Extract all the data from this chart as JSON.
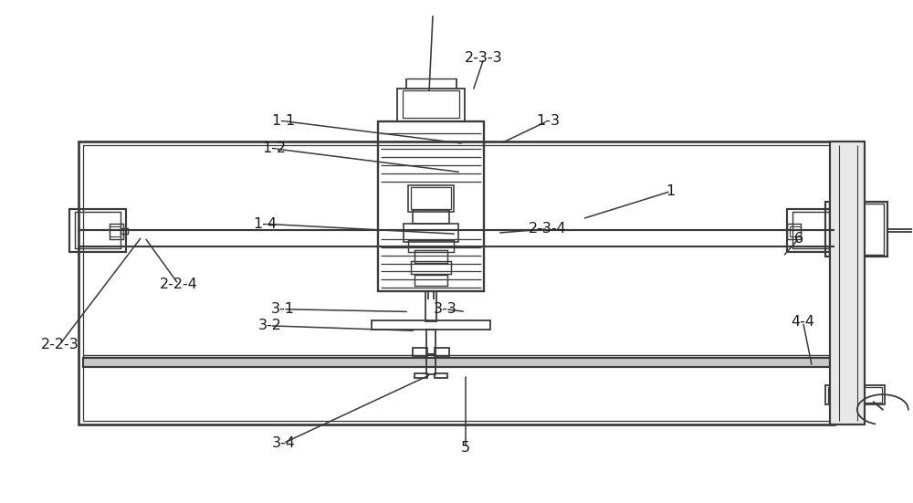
{
  "bg_color": "#ffffff",
  "line_color": "#3a3a3a",
  "fig_width": 10.0,
  "fig_height": 5.51,
  "annotations": [
    [
      "1",
      [
        0.735,
        0.62
      ],
      [
        0.638,
        0.565
      ]
    ],
    [
      "1-1",
      [
        0.31,
        0.76
      ],
      [
        0.508,
        0.715
      ]
    ],
    [
      "1-2",
      [
        0.3,
        0.705
      ],
      [
        0.505,
        0.658
      ]
    ],
    [
      "1-3",
      [
        0.6,
        0.76
      ],
      [
        0.548,
        0.715
      ]
    ],
    [
      "1-4",
      [
        0.29,
        0.555
      ],
      [
        0.5,
        0.535
      ]
    ],
    [
      "2-2-3",
      [
        0.065,
        0.315
      ],
      [
        0.155,
        0.53
      ]
    ],
    [
      "2-2-4",
      [
        0.195,
        0.435
      ],
      [
        0.158,
        0.528
      ]
    ],
    [
      "2-3-3",
      [
        0.53,
        0.885
      ],
      [
        0.518,
        0.82
      ]
    ],
    [
      "2-3-4",
      [
        0.6,
        0.545
      ],
      [
        0.545,
        0.537
      ]
    ],
    [
      "3-1",
      [
        0.31,
        0.385
      ],
      [
        0.448,
        0.38
      ]
    ],
    [
      "3-2",
      [
        0.295,
        0.352
      ],
      [
        0.455,
        0.342
      ]
    ],
    [
      "3-3",
      [
        0.488,
        0.385
      ],
      [
        0.51,
        0.38
      ]
    ],
    [
      "3-4",
      [
        0.31,
        0.118
      ],
      [
        0.472,
        0.255
      ]
    ],
    [
      "4-4",
      [
        0.88,
        0.36
      ],
      [
        0.89,
        0.27
      ]
    ],
    [
      "5",
      [
        0.51,
        0.108
      ],
      [
        0.51,
        0.255
      ]
    ],
    [
      "6",
      [
        0.875,
        0.525
      ],
      [
        0.858,
        0.49
      ]
    ]
  ]
}
